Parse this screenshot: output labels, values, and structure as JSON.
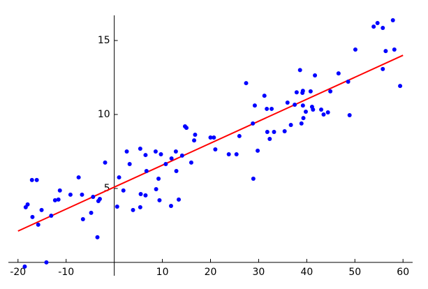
{
  "chart_data": {
    "type": "scatter",
    "xlim": [
      -22,
      62
    ],
    "ylim": [
      -0.9,
      16.7
    ],
    "xticks": [
      -20,
      -10,
      10,
      20,
      30,
      40,
      50,
      60
    ],
    "yticks": [
      5,
      10,
      15
    ],
    "points": {
      "color": "#0000ff",
      "x": [
        -18.6,
        -14.1,
        -18.4,
        -18.0,
        -17.1,
        -16.1,
        -17.0,
        -15.8,
        -15.1,
        -13.1,
        -12.3,
        -11.6,
        -11.3,
        -9.1,
        -7.4,
        -6.7,
        -6.5,
        -4.8,
        -4.4,
        -3.3,
        -3.5,
        -3.0,
        -1.9,
        0.6,
        1.0,
        1.9,
        2.6,
        3.2,
        3.9,
        5.4,
        5.5,
        5.4,
        6.5,
        6.5,
        6.7,
        8.6,
        8.7,
        9.2,
        9.4,
        9.7,
        10.7,
        11.8,
        11.9,
        12.8,
        12.9,
        13.4,
        14.1,
        14.7,
        15.0,
        16.0,
        16.6,
        16.8,
        20.0,
        20.7,
        21.0,
        23.8,
        25.4,
        26.0,
        27.4,
        28.8,
        28.9,
        29.2,
        29.8,
        31.2,
        31.7,
        31.8,
        32.3,
        32.7,
        33.2,
        35.4,
        36.0,
        36.7,
        37.5,
        37.9,
        38.6,
        38.9,
        39.1,
        39.2,
        39.2,
        39.3,
        39.8,
        40.8,
        41.1,
        41.3,
        41.7,
        43.0,
        43.5,
        44.4,
        44.9,
        46.6,
        48.6,
        48.9,
        50.1,
        53.9,
        54.7,
        55.8,
        55.8,
        56.4,
        57.9,
        58.2,
        59.4
      ],
      "y": [
        -0.28,
        0,
        3.73,
        3.92,
        5.57,
        5.57,
        3.07,
        2.55,
        3.54,
        3.16,
        4.2,
        4.25,
        4.86,
        4.58,
        5.75,
        4.58,
        2.92,
        3.35,
        4.43,
        4.15,
        1.7,
        4.29,
        6.75,
        3.77,
        5.75,
        4.86,
        7.5,
        6.65,
        3.54,
        7.69,
        4.62,
        3.73,
        4.53,
        7.26,
        6.18,
        7.5,
        4.95,
        5.66,
        4.2,
        7.31,
        6.65,
        3.82,
        7.03,
        7.5,
        6.18,
        4.25,
        7.22,
        9.2,
        9.1,
        6.75,
        8.25,
        8.63,
        8.44,
        8.44,
        7.64,
        7.31,
        7.31,
        8.54,
        12.12,
        9.39,
        5.66,
        10.61,
        7.55,
        11.27,
        10.38,
        8.82,
        8.35,
        10.38,
        8.82,
        8.87,
        10.8,
        9.29,
        10.66,
        11.5,
        13.0,
        9.39,
        11.46,
        10.61,
        11.6,
        9.76,
        10.19,
        11.56,
        10.52,
        10.33,
        12.64,
        10.33,
        10.0,
        10.14,
        11.56,
        12.78,
        12.22,
        9.95,
        14.39,
        15.94,
        16.18,
        15.85,
        13.07,
        14.29,
        16.37,
        14.39,
        11.93
      ]
    },
    "fit_line": {
      "color": "#ff0000",
      "x": [
        -20,
        60
      ],
      "y": [
        2.12,
        14.0
      ]
    }
  }
}
